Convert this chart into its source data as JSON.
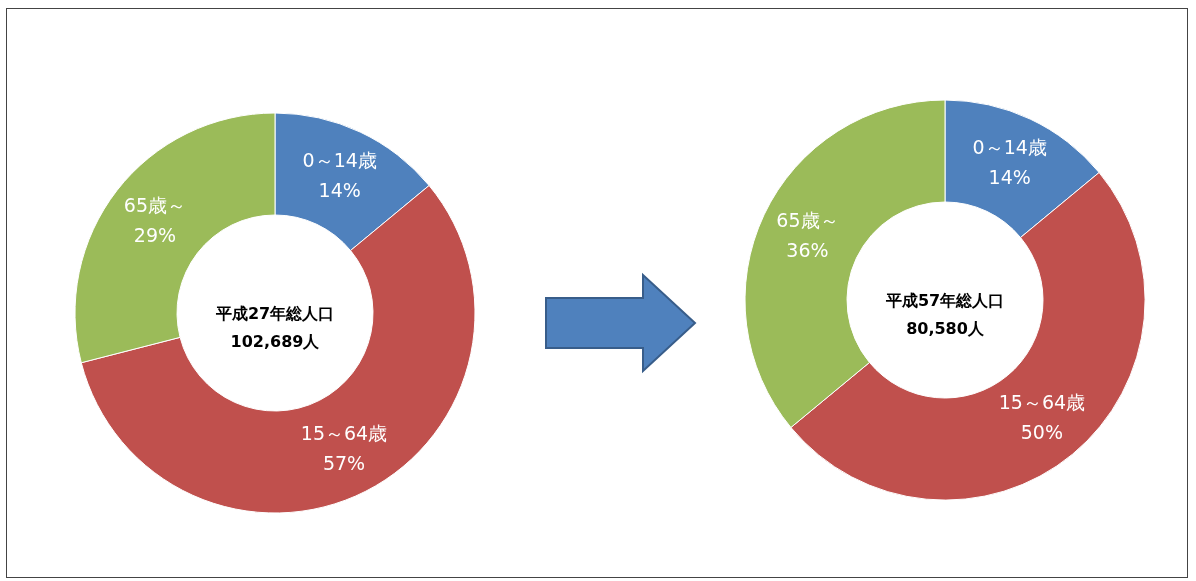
{
  "chart_data": [
    {
      "type": "donut",
      "title": "平成27年総人口",
      "subtitle": "102,689人",
      "categories": [
        "0～14歳",
        "15～64歳",
        "65歳～"
      ],
      "values": [
        14,
        57,
        29
      ],
      "value_labels": [
        "14%",
        "57%",
        "29%"
      ],
      "colors": [
        "#4f81bd",
        "#c0504d",
        "#9bbb59"
      ],
      "legend": false
    },
    {
      "type": "donut",
      "title": "平成57年総人口",
      "subtitle": "80,580人",
      "categories": [
        "0～14歳",
        "15～64歳",
        "65歳～"
      ],
      "values": [
        14,
        50,
        36
      ],
      "value_labels": [
        "14%",
        "50%",
        "36%"
      ],
      "colors": [
        "#4f81bd",
        "#c0504d",
        "#9bbb59"
      ],
      "legend": false
    }
  ]
}
